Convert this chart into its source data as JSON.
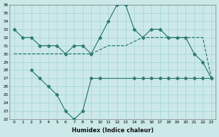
{
  "xlabel": "Humidex (Indice chaleur)",
  "x_ticks": [
    0,
    1,
    2,
    3,
    4,
    5,
    6,
    7,
    8,
    9,
    10,
    11,
    12,
    13,
    14,
    15,
    16,
    17,
    18,
    19,
    20,
    21,
    22,
    23
  ],
  "ylim": [
    22,
    36
  ],
  "yticks": [
    22,
    23,
    24,
    25,
    26,
    27,
    28,
    29,
    30,
    31,
    32,
    33,
    34,
    35,
    36
  ],
  "upper_x": [
    0,
    1,
    2,
    3,
    4,
    5,
    6,
    7,
    8,
    9,
    10,
    11,
    12,
    13,
    14,
    15,
    16,
    17,
    18,
    19,
    20,
    21,
    22,
    23
  ],
  "upper_y": [
    33,
    32,
    32,
    31,
    31,
    31,
    30,
    31,
    31,
    30,
    32,
    34,
    36,
    36,
    33,
    32,
    33,
    33,
    32,
    32,
    32,
    30,
    29,
    27
  ],
  "dash_x": [
    0,
    1,
    2,
    3,
    4,
    5,
    6,
    7,
    8,
    9,
    10,
    11,
    12,
    13,
    14,
    15,
    16,
    17,
    18,
    19,
    20,
    21,
    22,
    23
  ],
  "dash_y": [
    30,
    30,
    30,
    30,
    30,
    30,
    30,
    30,
    30,
    30,
    30.5,
    31,
    31,
    31,
    31.5,
    32,
    32,
    32,
    32,
    32,
    32,
    32,
    32,
    27
  ],
  "lower_x": [
    2,
    3,
    4,
    5,
    6,
    7,
    8,
    9,
    10,
    14,
    15,
    16,
    17,
    18,
    19,
    20,
    21,
    22,
    23
  ],
  "lower_y": [
    28,
    27,
    26,
    25,
    23,
    22,
    23,
    27,
    27,
    27,
    27,
    27,
    27,
    27,
    27,
    27,
    27,
    27,
    27
  ],
  "color": "#2e7d6e",
  "bg_color": "#cce8e8",
  "grid_color": "#b0d8d8"
}
